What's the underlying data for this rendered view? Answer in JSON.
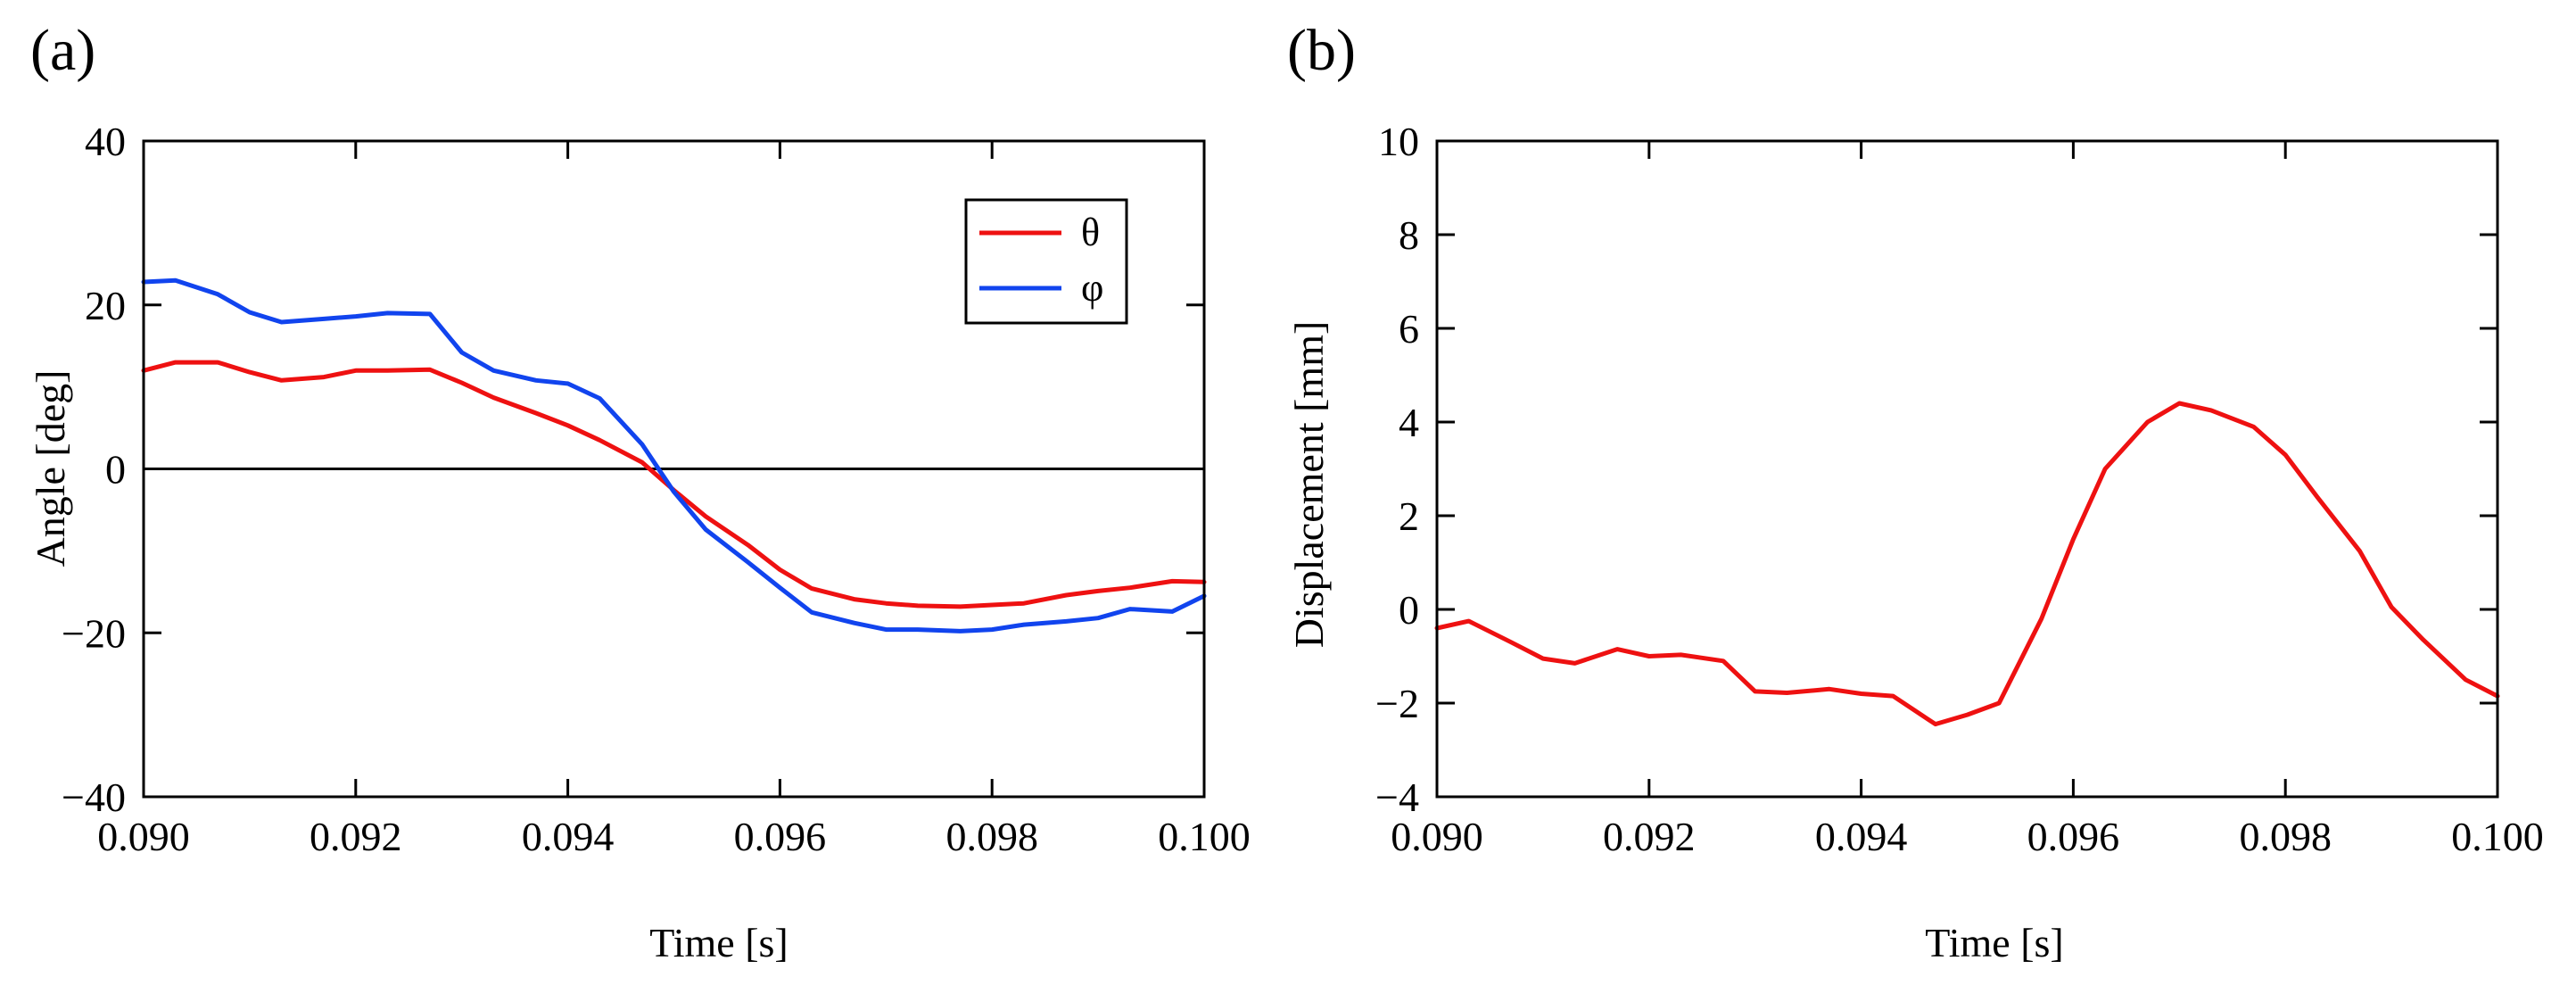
{
  "chart_data": [
    {
      "panel_label": "(a)",
      "type": "line",
      "xlabel": "Time [s]",
      "ylabel": "Angle [deg]",
      "xlim": [
        0.09,
        0.1
      ],
      "ylim": [
        -40,
        40
      ],
      "xticks": [
        "0.090",
        "0.092",
        "0.094",
        "0.096",
        "0.098",
        "0.100"
      ],
      "xtick_values": [
        0.09,
        0.092,
        0.094,
        0.096,
        0.098,
        0.1
      ],
      "yticks": [
        "−40",
        "−20",
        "0",
        "20",
        "40"
      ],
      "ytick_values": [
        -40,
        -20,
        0,
        20,
        40
      ],
      "zero_line": true,
      "legend_position": "top-right",
      "series": [
        {
          "name": "θ",
          "color": "#ee1111",
          "x": [
            0.09,
            0.0903,
            0.0907,
            0.091,
            0.0913,
            0.0917,
            0.092,
            0.0923,
            0.0927,
            0.093,
            0.0933,
            0.0937,
            0.094,
            0.0943,
            0.0947,
            0.095,
            0.0953,
            0.0957,
            0.096,
            0.0963,
            0.0967,
            0.097,
            0.0973,
            0.0977,
            0.098,
            0.0983,
            0.0987,
            0.099,
            0.0993,
            0.0997,
            0.1
          ],
          "values": [
            12.0,
            13.0,
            13.0,
            11.8,
            10.8,
            11.2,
            12.0,
            12.0,
            12.1,
            10.5,
            8.7,
            6.8,
            5.3,
            3.5,
            0.8,
            -2.6,
            -5.8,
            -9.3,
            -12.3,
            -14.6,
            -15.9,
            -16.4,
            -16.7,
            -16.8,
            -16.6,
            -16.4,
            -15.4,
            -14.9,
            -14.5,
            -13.7,
            -13.8
          ]
        },
        {
          "name": "φ",
          "color": "#1144ee",
          "x": [
            0.09,
            0.0903,
            0.0907,
            0.091,
            0.0913,
            0.0917,
            0.092,
            0.0923,
            0.0927,
            0.093,
            0.0933,
            0.0937,
            0.094,
            0.0943,
            0.0947,
            0.095,
            0.0953,
            0.0957,
            0.096,
            0.0963,
            0.0967,
            0.097,
            0.0973,
            0.0977,
            0.098,
            0.0983,
            0.0987,
            0.099,
            0.0993,
            0.0997,
            0.1
          ],
          "values": [
            22.8,
            23.0,
            21.3,
            19.1,
            17.9,
            18.3,
            18.6,
            19.0,
            18.9,
            14.2,
            12.0,
            10.8,
            10.4,
            8.6,
            3.0,
            -2.8,
            -7.4,
            -11.4,
            -14.5,
            -17.5,
            -18.8,
            -19.6,
            -19.6,
            -19.8,
            -19.6,
            -19.0,
            -18.6,
            -18.2,
            -17.1,
            -17.4,
            -15.5
          ]
        }
      ]
    },
    {
      "panel_label": "(b)",
      "type": "line",
      "xlabel": "Time [s]",
      "ylabel": "Displacement [mm]",
      "xlim": [
        0.09,
        0.1
      ],
      "ylim": [
        -4,
        10
      ],
      "xticks": [
        "0.090",
        "0.092",
        "0.094",
        "0.096",
        "0.098",
        "0.100"
      ],
      "xtick_values": [
        0.09,
        0.092,
        0.094,
        0.096,
        0.098,
        0.1
      ],
      "yticks": [
        "−4",
        "−2",
        "0",
        "2",
        "4",
        "6",
        "8",
        "10"
      ],
      "ytick_values": [
        -4,
        -2,
        0,
        2,
        4,
        6,
        8,
        10
      ],
      "zero_line": false,
      "series": [
        {
          "name": "displacement",
          "color": "#ee1111",
          "x": [
            0.09,
            0.0903,
            0.0907,
            0.091,
            0.0913,
            0.0917,
            0.092,
            0.0923,
            0.0927,
            0.093,
            0.0933,
            0.0937,
            0.094,
            0.0943,
            0.0947,
            0.095,
            0.0953,
            0.0957,
            0.096,
            0.0963,
            0.0967,
            0.097,
            0.0973,
            0.0977,
            0.098,
            0.0983,
            0.0987,
            0.099,
            0.0993,
            0.0997,
            0.1
          ],
          "values": [
            -0.4,
            -0.25,
            -0.7,
            -1.05,
            -1.15,
            -0.85,
            -1.0,
            -0.97,
            -1.1,
            -1.75,
            -1.78,
            -1.7,
            -1.8,
            -1.85,
            -2.45,
            -2.25,
            -2.0,
            -0.2,
            1.5,
            3.0,
            4.0,
            4.4,
            4.25,
            3.9,
            3.3,
            2.4,
            1.25,
            0.05,
            -0.65,
            -1.5,
            -1.85
          ]
        }
      ]
    }
  ]
}
